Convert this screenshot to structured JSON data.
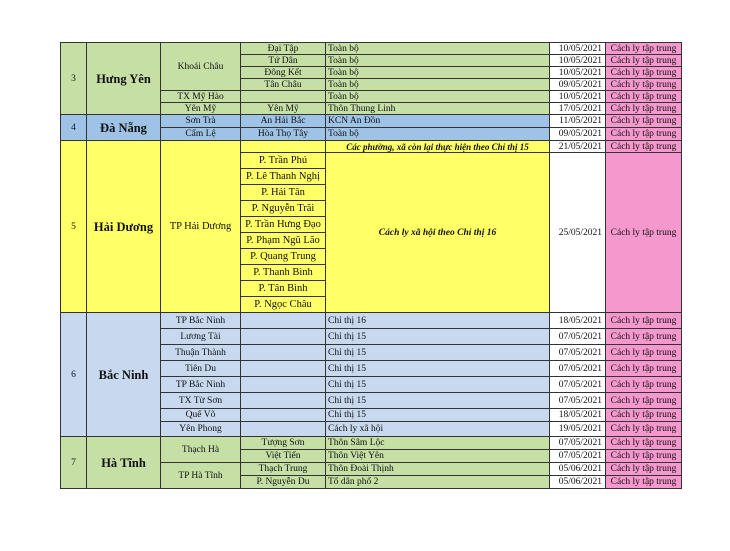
{
  "table": {
    "hung_yen": {
      "stt": "3",
      "province": "Hưng Yên",
      "districts": {
        "khoai_chau": "Khoái Châu",
        "my_hao": "TX Mỹ Hào",
        "yen_my": "Yên Mỹ"
      },
      "rows": [
        {
          "ward": "Đại Tập",
          "area": "Toàn bộ",
          "date": "10/05/2021",
          "measure": "Cách ly tập trung"
        },
        {
          "ward": "Tứ Dân",
          "area": "Toàn bộ",
          "date": "10/05/2021",
          "measure": "Cách ly tập trung"
        },
        {
          "ward": "Đông Kết",
          "area": "Toàn bộ",
          "date": "10/05/2021",
          "measure": "Cách ly tập trung"
        },
        {
          "ward": "Tân Châu",
          "area": "Toàn bộ",
          "date": "09/05/2021",
          "measure": "Cách ly tập trung"
        },
        {
          "ward": "",
          "area": "Toàn bộ",
          "date": "10/05/2021",
          "measure": "Cách ly tập trung"
        },
        {
          "ward": "Yên Mỹ",
          "area": "Thôn Thung Linh",
          "date": "17/05/2021",
          "measure": "Cách ly tập trung"
        }
      ]
    },
    "da_nang": {
      "stt": "4",
      "province": "Đà Nẵng",
      "rows": [
        {
          "district": "Sơn Trà",
          "ward": "An Hải Bắc",
          "area": "KCN An Đồn",
          "date": "11/05/2021",
          "measure": "Cách ly tập trung"
        },
        {
          "district": "Cẩm Lệ",
          "ward": "Hòa Thọ Tây",
          "area": "Toàn bộ",
          "date": "09/05/2021",
          "measure": "Cách ly tập trung"
        }
      ]
    },
    "hai_duong": {
      "stt": "5",
      "province": "Hải Dương",
      "district": "TP Hải Dương",
      "first_row": {
        "area": "Các phường, xã còn lại thực hiện theo Chỉ thị 15",
        "date": "21/05/2021",
        "measure": "Cách ly tập trung"
      },
      "wards": [
        "P. Trần Phú",
        "P. Lê Thanh Nghị",
        "P. Hải Tân",
        "P. Nguyễn Trãi",
        "P. Trần Hưng Đạo",
        "P. Phạm Ngũ Lão",
        "P. Quang Trung",
        "P. Thanh Bình",
        "P. Tân Bình",
        "P. Ngọc Châu"
      ],
      "merged": {
        "area": "Cách ly xã hội theo Chỉ thị 16",
        "date": "25/05/2021",
        "measure": "Cách ly tập trung"
      }
    },
    "bac_ninh": {
      "stt": "6",
      "province": "Bắc Ninh",
      "rows": [
        {
          "district": "TP Bắc Ninh",
          "area": "Chỉ thị 16",
          "date": "18/05/2021",
          "measure": "Cách ly tập trung"
        },
        {
          "district": "Lương Tài",
          "area": "Chỉ thị 15",
          "date": "07/05/2021",
          "measure": "Cách ly tập trung"
        },
        {
          "district": "Thuận Thành",
          "area": "Chỉ thị 15",
          "date": "07/05/2021",
          "measure": "Cách ly tập trung"
        },
        {
          "district": "Tiên Du",
          "area": "Chỉ thị 15",
          "date": "07/05/2021",
          "measure": "Cách ly tập trung"
        },
        {
          "district": "TP Bắc Ninh",
          "area": "Chỉ thị 15",
          "date": "07/05/2021",
          "measure": "Cách ly tập trung"
        },
        {
          "district": "TX Từ Sơn",
          "area": "Chỉ thị 15",
          "date": "07/05/2021",
          "measure": "Cách ly tập trung"
        },
        {
          "district": "Quế Võ",
          "area": "Chỉ thị 15",
          "date": "18/05/2021",
          "measure": "Cách ly tập trung"
        },
        {
          "district": "Yên Phong",
          "area": "Cách ly xã hội",
          "date": "19/05/2021",
          "measure": "Cách ly tập trung"
        }
      ]
    },
    "ha_tinh": {
      "stt": "7",
      "province": "Hà Tĩnh",
      "districts": {
        "thach_ha": "Thạch Hà",
        "tp_ha_tinh": "TP Hà Tĩnh"
      },
      "rows": [
        {
          "ward": "Tượng Sơn",
          "area": "Thôn Sâm Lộc",
          "date": "07/05/2021",
          "measure": "Cách ly tập trung"
        },
        {
          "ward": "Việt Tiến",
          "area": "Thôn Việt Yên",
          "date": "07/05/2021",
          "measure": "Cách ly tập trung"
        },
        {
          "ward": "Thạch Trung",
          "area": "Thôn Đoài Thịnh",
          "date": "05/06/2021",
          "measure": "Cách ly tập trung"
        },
        {
          "ward": "P. Nguyễn Du",
          "area": "Tổ dân phố 2",
          "date": "05/06/2021",
          "measure": "Cách ly tập trung"
        }
      ]
    }
  },
  "colors": {
    "green": "#c5dfa5",
    "blue": "#9ec3e6",
    "yellow": "#ffff66",
    "light_blue": "#c8d9ef",
    "pink": "#f598cd"
  }
}
